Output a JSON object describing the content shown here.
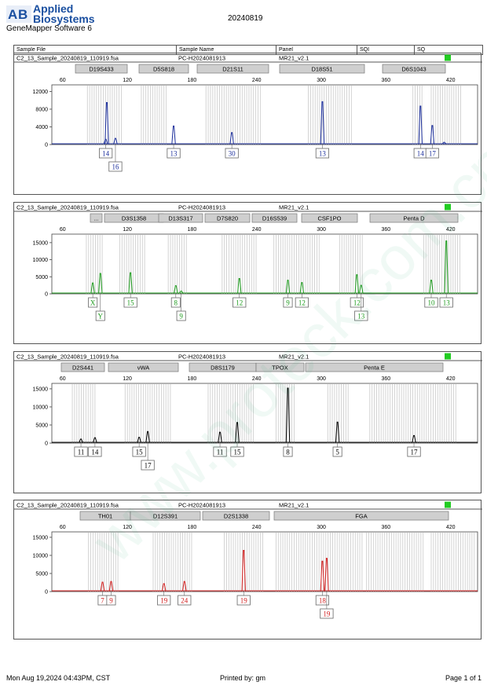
{
  "header": {
    "brand_line1": "Applied",
    "brand_line2": "Biosystems",
    "software": "GeneMapper Software 6",
    "date_title": "20240819"
  },
  "table_headers": [
    "Sample File",
    "Sample Name",
    "Panel",
    "SQI",
    "SQ"
  ],
  "colors": {
    "blue": "#1c2f9c",
    "green": "#1e9b1e",
    "black": "#000000",
    "red": "#d11d1d",
    "status_ok": "#22cc22"
  },
  "footer": {
    "timestamp": "Mon Aug 19,2024 04:43PM, CST",
    "printed_by": "Printed by: gm",
    "page": "Page 1 of 1"
  },
  "chart_data": [
    {
      "type": "line",
      "dye": "blue",
      "sample_file": "C2_13_Sample_20240819_110919.fsa",
      "sample_name": "PC-H2024081913",
      "panel": "MR21_v2.1",
      "x_ticks": [
        60,
        120,
        180,
        240,
        300,
        360,
        420
      ],
      "y_ticks": [
        0,
        4000,
        8000,
        12000
      ],
      "xlim": [
        50,
        445
      ],
      "ylim": [
        0,
        13500
      ],
      "markers": [
        "D19S433",
        "D5S818",
        "D21S11",
        "D18S51",
        "D6S1043"
      ],
      "peaks": [
        {
          "x": 100,
          "y": 1200
        },
        {
          "x": 101,
          "y": 9500
        },
        {
          "x": 109,
          "y": 1400
        },
        {
          "x": 163,
          "y": 4200
        },
        {
          "x": 217,
          "y": 2700
        },
        {
          "x": 301,
          "y": 9700
        },
        {
          "x": 392,
          "y": 8700
        },
        {
          "x": 403,
          "y": 4300
        },
        {
          "x": 414,
          "y": 500
        }
      ],
      "allele_labels": [
        {
          "x": 100,
          "row": 1,
          "text": "14"
        },
        {
          "x": 109,
          "row": 2,
          "text": "16"
        },
        {
          "x": 163,
          "row": 1,
          "text": "13"
        },
        {
          "x": 217,
          "row": 1,
          "text": "30"
        },
        {
          "x": 301,
          "row": 1,
          "text": "13"
        },
        {
          "x": 392,
          "row": 1,
          "text": "14"
        },
        {
          "x": 403,
          "row": 1,
          "text": "17"
        }
      ]
    },
    {
      "type": "line",
      "dye": "green",
      "sample_file": "C2_13_Sample_20240819_110919.fsa",
      "sample_name": "PC-H2024081913",
      "panel": "MR21_v2.1",
      "x_ticks": [
        60,
        120,
        180,
        240,
        300,
        360,
        420
      ],
      "y_ticks": [
        0,
        5000,
        10000,
        15000
      ],
      "xlim": [
        50,
        445
      ],
      "ylim": [
        0,
        17500
      ],
      "markers": [
        "...",
        "D3S1358",
        "D13S317",
        "D7S820",
        "D16S539",
        "CSF1PO",
        "Penta D"
      ],
      "peaks": [
        {
          "x": 88,
          "y": 3200
        },
        {
          "x": 95,
          "y": 6000
        },
        {
          "x": 123,
          "y": 6200
        },
        {
          "x": 165,
          "y": 2400
        },
        {
          "x": 170,
          "y": 800
        },
        {
          "x": 224,
          "y": 4500
        },
        {
          "x": 269,
          "y": 4000
        },
        {
          "x": 282,
          "y": 3300
        },
        {
          "x": 333,
          "y": 5600
        },
        {
          "x": 337,
          "y": 2500
        },
        {
          "x": 402,
          "y": 4000
        },
        {
          "x": 416,
          "y": 15500
        }
      ],
      "allele_labels": [
        {
          "x": 88,
          "row": 1,
          "text": "X"
        },
        {
          "x": 95,
          "row": 2,
          "text": "Y"
        },
        {
          "x": 123,
          "row": 1,
          "text": "15"
        },
        {
          "x": 165,
          "row": 1,
          "text": "8"
        },
        {
          "x": 170,
          "row": 2,
          "text": "9"
        },
        {
          "x": 224,
          "row": 1,
          "text": "12"
        },
        {
          "x": 269,
          "row": 1,
          "text": "9"
        },
        {
          "x": 282,
          "row": 1,
          "text": "12"
        },
        {
          "x": 333,
          "row": 1,
          "text": "12"
        },
        {
          "x": 337,
          "row": 2,
          "text": "13"
        },
        {
          "x": 402,
          "row": 1,
          "text": "10"
        },
        {
          "x": 416,
          "row": 1,
          "text": "13"
        }
      ]
    },
    {
      "type": "line",
      "dye": "black",
      "sample_file": "C2_13_Sample_20240819_110919.fsa",
      "sample_name": "PC-H2024081913",
      "panel": "MR21_v2.1",
      "x_ticks": [
        60,
        120,
        180,
        240,
        300,
        360,
        420
      ],
      "y_ticks": [
        0,
        5000,
        10000,
        15000
      ],
      "xlim": [
        50,
        445
      ],
      "ylim": [
        0,
        16500
      ],
      "markers": [
        "D2S441",
        "vWA",
        "D8S1179",
        "TPOX",
        "Penta E"
      ],
      "peaks": [
        {
          "x": 77,
          "y": 1100
        },
        {
          "x": 90,
          "y": 1500
        },
        {
          "x": 131,
          "y": 1600
        },
        {
          "x": 139,
          "y": 3200
        },
        {
          "x": 206,
          "y": 3000
        },
        {
          "x": 222,
          "y": 5700
        },
        {
          "x": 269,
          "y": 15200
        },
        {
          "x": 315,
          "y": 5800
        },
        {
          "x": 386,
          "y": 2100
        }
      ],
      "allele_labels": [
        {
          "x": 77,
          "row": 1,
          "text": "11"
        },
        {
          "x": 90,
          "row": 1,
          "text": "14"
        },
        {
          "x": 131,
          "row": 1,
          "text": "15"
        },
        {
          "x": 139,
          "row": 2,
          "text": "17"
        },
        {
          "x": 206,
          "row": 1,
          "text": "11"
        },
        {
          "x": 222,
          "row": 1,
          "text": "15"
        },
        {
          "x": 269,
          "row": 1,
          "text": "8"
        },
        {
          "x": 315,
          "row": 1,
          "text": "5"
        },
        {
          "x": 386,
          "row": 1,
          "text": "17"
        }
      ]
    },
    {
      "type": "line",
      "dye": "red",
      "sample_file": "C2_13_Sample_20240819_110919.fsa",
      "sample_name": "PC-H2024081913",
      "panel": "MR21_v2.1",
      "x_ticks": [
        60,
        120,
        180,
        240,
        300,
        360,
        420
      ],
      "y_ticks": [
        0,
        5000,
        10000,
        15000
      ],
      "xlim": [
        50,
        445
      ],
      "ylim": [
        0,
        16500
      ],
      "markers": [
        "TH01",
        "D12S391",
        "D2S1338",
        "FGA"
      ],
      "peaks": [
        {
          "x": 97,
          "y": 2600
        },
        {
          "x": 105,
          "y": 2800
        },
        {
          "x": 154,
          "y": 2200
        },
        {
          "x": 173,
          "y": 2800
        },
        {
          "x": 228,
          "y": 11400
        },
        {
          "x": 301,
          "y": 8400
        },
        {
          "x": 305,
          "y": 9200
        }
      ],
      "allele_labels": [
        {
          "x": 97,
          "row": 1,
          "text": "7"
        },
        {
          "x": 105,
          "row": 1,
          "text": "9"
        },
        {
          "x": 154,
          "row": 1,
          "text": "19"
        },
        {
          "x": 173,
          "row": 1,
          "text": "24"
        },
        {
          "x": 228,
          "row": 1,
          "text": "19"
        },
        {
          "x": 301,
          "row": 1,
          "text": "18"
        },
        {
          "x": 305,
          "row": 2,
          "text": "19"
        }
      ]
    }
  ]
}
